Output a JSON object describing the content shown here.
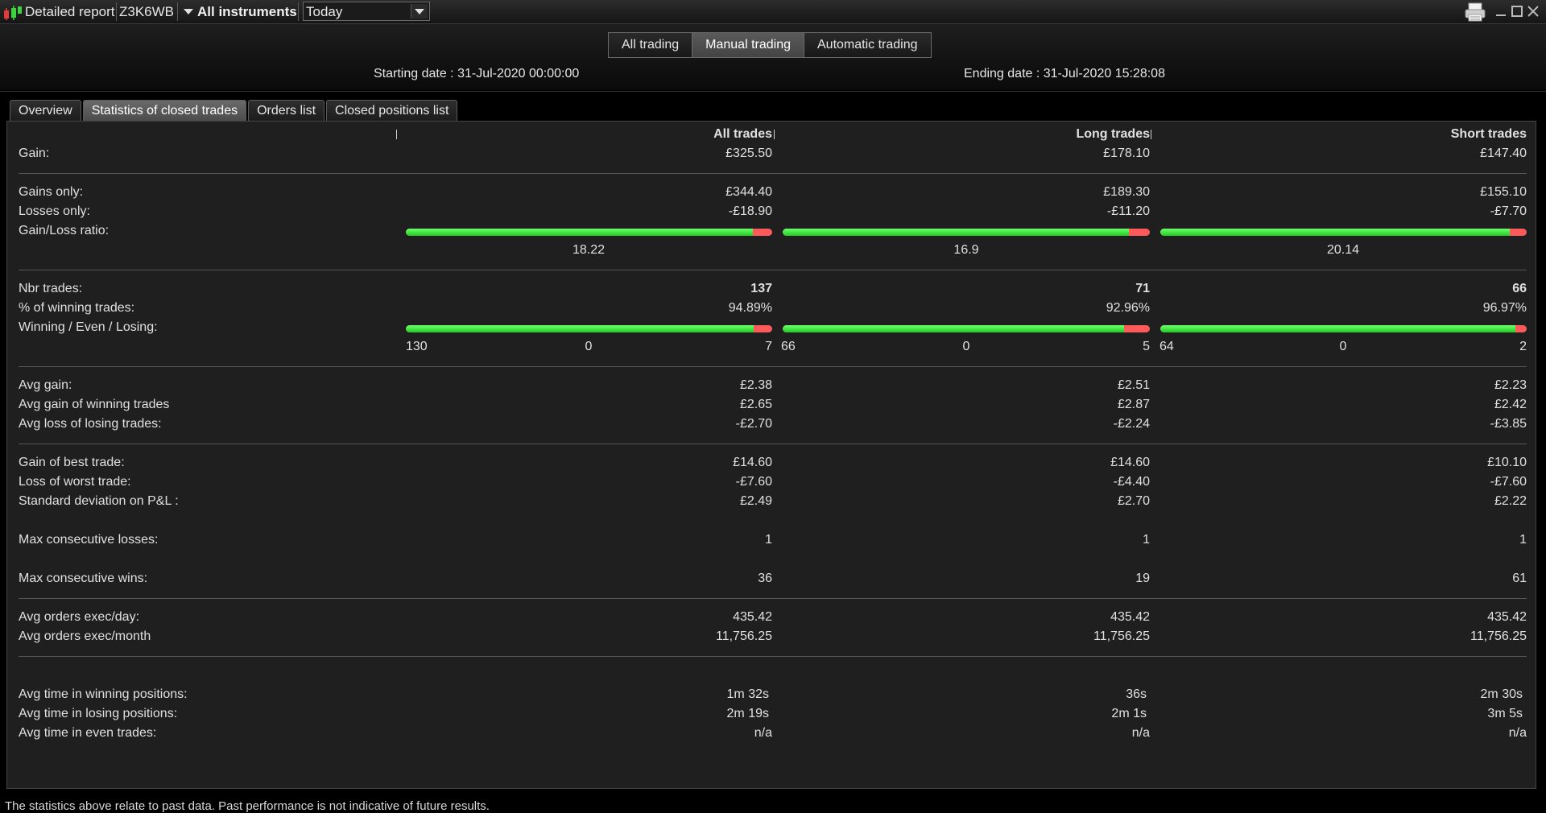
{
  "titlebar": {
    "title": "Detailed report",
    "account": "Z3K6WB",
    "instruments": "All instruments",
    "period": "Today"
  },
  "mode_tabs": [
    "All trading",
    "Manual trading",
    "Automatic trading"
  ],
  "dates": {
    "start": "Starting date : 31-Jul-2020 00:00:00",
    "end": "Ending date : 31-Jul-2020 15:28:08"
  },
  "tabs": [
    "Overview",
    "Statistics of closed trades",
    "Orders list",
    "Closed positions list"
  ],
  "columns": [
    "All trades",
    "Long trades",
    "Short trades"
  ],
  "stats": {
    "gain": {
      "label": "Gain:",
      "values": [
        "£325.50",
        "£178.10",
        "£147.40"
      ]
    },
    "gains_only": {
      "label": "Gains only:",
      "values": [
        "£344.40",
        "£189.30",
        "£155.10"
      ]
    },
    "losses_only": {
      "label": "Losses only:",
      "values": [
        "-£18.90",
        "-£11.20",
        "-£7.70"
      ]
    },
    "gain_loss_ratio": {
      "label": "Gain/Loss ratio:",
      "values": [
        "18.22",
        "16.9",
        "20.14"
      ],
      "green_fraction": [
        0.948,
        0.944,
        0.953
      ]
    },
    "nbr_trades": {
      "label": "Nbr trades:",
      "values": [
        "137",
        "71",
        "66"
      ]
    },
    "pct_winning": {
      "label": "% of winning trades:",
      "values": [
        "94.89%",
        "92.96%",
        "96.97%"
      ]
    },
    "win_even_lose": {
      "label": "Winning / Even / Losing:",
      "winning": [
        "130",
        "66",
        "64"
      ],
      "even": [
        "0",
        "0",
        "0"
      ],
      "losing": [
        "7",
        "5",
        "2"
      ],
      "green_fraction": [
        0.949,
        0.93,
        0.97
      ]
    },
    "avg_gain": {
      "label": "Avg gain:",
      "values": [
        "£2.38",
        "£2.51",
        "£2.23"
      ]
    },
    "avg_gain_winning": {
      "label": "Avg gain of winning trades",
      "values": [
        "£2.65",
        "£2.87",
        "£2.42"
      ]
    },
    "avg_loss_losing": {
      "label": "Avg loss of losing trades:",
      "values": [
        "-£2.70",
        "-£2.24",
        "-£3.85"
      ]
    },
    "best_trade": {
      "label": "Gain of best trade:",
      "values": [
        "£14.60",
        "£14.60",
        "£10.10"
      ]
    },
    "worst_trade": {
      "label": "Loss of worst trade:",
      "values": [
        "-£7.60",
        "-£4.40",
        "-£7.60"
      ]
    },
    "std_dev": {
      "label": "Standard deviation on P&L :",
      "values": [
        "£2.49",
        "£2.70",
        "£2.22"
      ]
    },
    "max_consec_losses": {
      "label": "Max consecutive losses:",
      "values": [
        "1",
        "1",
        "1"
      ]
    },
    "max_consec_wins": {
      "label": "Max consecutive wins:",
      "values": [
        "36",
        "19",
        "61"
      ]
    },
    "avg_orders_day": {
      "label": "Avg orders exec/day:",
      "values": [
        "435.42",
        "435.42",
        "435.42"
      ]
    },
    "avg_orders_month": {
      "label": "Avg orders exec/month",
      "values": [
        "11,756.25",
        "11,756.25",
        "11,756.25"
      ]
    },
    "avg_time_winning": {
      "label": "Avg time in winning positions:",
      "values": [
        "1m 32s",
        "36s",
        "2m 30s"
      ]
    },
    "avg_time_losing": {
      "label": "Avg time in losing positions:",
      "values": [
        "2m 19s",
        "2m 1s",
        "3m 5s"
      ]
    },
    "avg_time_even": {
      "label": "Avg time in even trades:",
      "values": [
        "n/a",
        "n/a",
        "n/a"
      ]
    }
  },
  "footer": "The statistics above relate to past data. Past performance is not indicative of future results."
}
